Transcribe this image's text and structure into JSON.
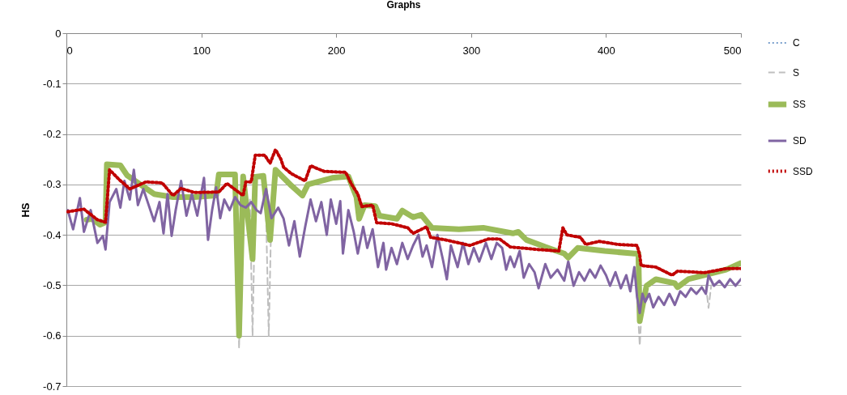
{
  "chart_data": {
    "type": "line",
    "title": "Graphs",
    "ylabel": "HS",
    "xlim": [
      0,
      500
    ],
    "xticks": [
      0,
      100,
      200,
      300,
      400,
      500
    ],
    "ylim": [
      -0.7,
      0
    ],
    "yticks": [
      0,
      -0.1,
      -0.2,
      -0.3,
      -0.4,
      -0.5,
      -0.6,
      -0.7
    ],
    "grid": "y",
    "legend": "right",
    "series": [
      {
        "name": "C",
        "color": "#4f81bd",
        "line_style": "dotted"
      },
      {
        "name": "S",
        "color": "#bfbfbf",
        "line_style": "dashed",
        "x": [
          126,
          128,
          130,
          133,
          136,
          138,
          140,
          144,
          148,
          150,
          152,
          300,
          423,
          425,
          427,
          450,
          474,
          476,
          478
        ],
        "values": [
          -0.36,
          -0.625,
          -0.3,
          null,
          -0.33,
          -0.6,
          -0.32,
          null,
          -0.36,
          -0.6,
          -0.35,
          null,
          -0.52,
          -0.62,
          -0.52,
          null,
          -0.5,
          -0.545,
          -0.5
        ]
      },
      {
        "name": "SS",
        "color": "#9bbb59",
        "line_style": "solid",
        "x": [
          15,
          19,
          25,
          29,
          30,
          40,
          45,
          65,
          79,
          95,
          111,
          113,
          125,
          128,
          131,
          138,
          140,
          146,
          151,
          155,
          161,
          167,
          175,
          179,
          197,
          209,
          215,
          217,
          221,
          229,
          232,
          245,
          249,
          257,
          263,
          271,
          291,
          309,
          331,
          335,
          341,
          355,
          369,
          372,
          379,
          399,
          421,
          424,
          425,
          430,
          437,
          451,
          453,
          461,
          473,
          489,
          500
        ],
        "values": [
          -0.37,
          -0.368,
          -0.38,
          -0.375,
          -0.26,
          -0.262,
          -0.282,
          -0.319,
          -0.325,
          -0.325,
          -0.322,
          -0.28,
          -0.28,
          -0.6,
          -0.284,
          -0.448,
          -0.285,
          -0.283,
          -0.41,
          -0.271,
          -0.287,
          -0.303,
          -0.322,
          -0.3,
          -0.287,
          -0.284,
          -0.325,
          -0.368,
          -0.341,
          -0.343,
          -0.362,
          -0.368,
          -0.352,
          -0.365,
          -0.36,
          -0.386,
          -0.389,
          -0.386,
          -0.397,
          -0.394,
          -0.41,
          -0.424,
          -0.437,
          -0.445,
          -0.426,
          -0.432,
          -0.437,
          -0.437,
          -0.571,
          -0.501,
          -0.488,
          -0.496,
          -0.504,
          -0.488,
          -0.48,
          -0.469,
          -0.456
        ]
      },
      {
        "name": "SD",
        "color": "#8064a2",
        "line_style": "solid",
        "x": [
          1,
          5,
          10,
          13,
          18,
          23,
          27,
          29,
          32,
          37,
          40,
          43,
          47,
          50,
          53,
          57,
          61,
          65,
          69,
          72,
          75,
          78,
          81,
          85,
          89,
          93,
          97,
          102,
          105,
          108,
          111,
          114,
          117,
          121,
          125,
          129,
          133,
          137,
          141,
          144,
          148,
          152,
          157,
          161,
          165,
          169,
          173,
          177,
          181,
          185,
          189,
          193,
          196,
          200,
          203,
          205,
          209,
          213,
          216,
          220,
          223,
          227,
          231,
          235,
          237,
          241,
          245,
          249,
          253,
          257,
          261,
          264,
          267,
          271,
          275,
          279,
          282,
          285,
          290,
          294,
          298,
          302,
          306,
          311,
          315,
          319,
          323,
          326,
          329,
          332,
          336,
          339,
          343,
          347,
          350,
          355,
          359,
          364,
          369,
          372,
          376,
          380,
          384,
          388,
          392,
          396,
          400,
          403,
          407,
          411,
          415,
          418,
          421,
          423,
          425,
          427,
          429,
          432,
          435,
          439,
          443,
          447,
          451,
          455,
          459,
          463,
          467,
          471,
          474,
          476,
          480,
          484,
          488,
          492,
          496,
          500
        ],
        "values": [
          -0.351,
          -0.389,
          -0.327,
          -0.394,
          -0.351,
          -0.416,
          -0.402,
          -0.429,
          -0.335,
          -0.309,
          -0.346,
          -0.293,
          -0.33,
          -0.271,
          -0.341,
          -0.309,
          -0.341,
          -0.373,
          -0.335,
          -0.397,
          -0.319,
          -0.402,
          -0.351,
          -0.293,
          -0.362,
          -0.319,
          -0.362,
          -0.287,
          -0.41,
          -0.351,
          -0.306,
          -0.367,
          -0.33,
          -0.351,
          -0.325,
          -0.341,
          -0.346,
          -0.335,
          -0.351,
          -0.357,
          -0.309,
          -0.367,
          -0.346,
          -0.368,
          -0.421,
          -0.373,
          -0.443,
          -0.384,
          -0.33,
          -0.373,
          -0.335,
          -0.4,
          -0.33,
          -0.378,
          -0.333,
          -0.437,
          -0.351,
          -0.394,
          -0.437,
          -0.384,
          -0.426,
          -0.389,
          -0.464,
          -0.416,
          -0.469,
          -0.426,
          -0.458,
          -0.416,
          -0.448,
          -0.421,
          -0.4,
          -0.443,
          -0.421,
          -0.464,
          -0.4,
          -0.448,
          -0.488,
          -0.421,
          -0.464,
          -0.416,
          -0.458,
          -0.426,
          -0.453,
          -0.416,
          -0.448,
          -0.416,
          -0.426,
          -0.469,
          -0.443,
          -0.464,
          -0.432,
          -0.485,
          -0.458,
          -0.474,
          -0.506,
          -0.458,
          -0.485,
          -0.469,
          -0.491,
          -0.453,
          -0.501,
          -0.474,
          -0.491,
          -0.469,
          -0.485,
          -0.461,
          -0.48,
          -0.501,
          -0.474,
          -0.506,
          -0.48,
          -0.512,
          -0.464,
          -0.523,
          -0.555,
          -0.517,
          -0.533,
          -0.517,
          -0.544,
          -0.523,
          -0.539,
          -0.517,
          -0.539,
          -0.512,
          -0.523,
          -0.506,
          -0.517,
          -0.504,
          -0.517,
          -0.48,
          -0.501,
          -0.491,
          -0.504,
          -0.488,
          -0.501,
          -0.488
        ]
      },
      {
        "name": "SSD",
        "color": "#c00000",
        "line_style": "dotted",
        "x": [
          1,
          13,
          23,
          29,
          32,
          39,
          47,
          59,
          71,
          79,
          85,
          95,
          113,
          119,
          131,
          133,
          137,
          140,
          147,
          151,
          155,
          159,
          161,
          167,
          177,
          181,
          191,
          207,
          211,
          216,
          219,
          227,
          230,
          241,
          253,
          257,
          267,
          270,
          281,
          291,
          299,
          313,
          321,
          329,
          349,
          365,
          368,
          371,
          381,
          385,
          395,
          409,
          423,
          425,
          426,
          437,
          449,
          453,
          473,
          489,
          500
        ],
        "values": [
          -0.354,
          -0.349,
          -0.37,
          -0.375,
          -0.271,
          -0.29,
          -0.309,
          -0.295,
          -0.297,
          -0.322,
          -0.308,
          -0.316,
          -0.315,
          -0.298,
          -0.322,
          -0.295,
          -0.295,
          -0.242,
          -0.242,
          -0.258,
          -0.231,
          -0.25,
          -0.266,
          -0.279,
          -0.293,
          -0.263,
          -0.274,
          -0.276,
          -0.298,
          -0.319,
          -0.344,
          -0.341,
          -0.376,
          -0.378,
          -0.386,
          -0.397,
          -0.384,
          -0.405,
          -0.41,
          -0.416,
          -0.421,
          -0.408,
          -0.408,
          -0.424,
          -0.429,
          -0.432,
          -0.386,
          -0.4,
          -0.405,
          -0.419,
          -0.413,
          -0.419,
          -0.421,
          -0.44,
          -0.461,
          -0.464,
          -0.48,
          -0.472,
          -0.475,
          -0.467,
          -0.467
        ]
      }
    ]
  }
}
